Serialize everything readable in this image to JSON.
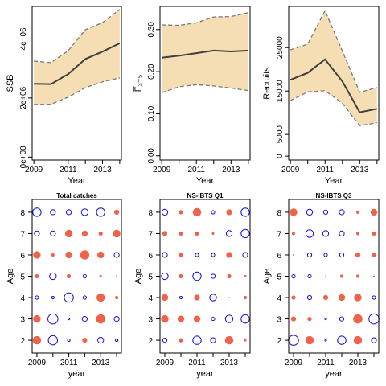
{
  "chart_data": [
    {
      "type": "area",
      "xlabel": "Year",
      "ylabel": "SSB",
      "x": [
        2009,
        2010,
        2011,
        2012,
        2013,
        2014
      ],
      "xticks": [
        "2009",
        "2011",
        "2013"
      ],
      "xlim": [
        2008.9,
        2014.1
      ],
      "ylim": [
        -100000,
        5100000
      ],
      "yticks": [
        0,
        2000000,
        4000000
      ],
      "ytick_labels": [
        "0e+00",
        "2e+06",
        "4e+06"
      ],
      "series": [
        {
          "role": "estimate",
          "values": [
            2480000,
            2470000,
            2810000,
            3320000,
            3570000,
            3850000
          ]
        },
        {
          "role": "upper",
          "values": [
            3250000,
            3200000,
            3600000,
            4310000,
            4550000,
            5000000
          ]
        },
        {
          "role": "lower",
          "values": [
            1780000,
            1790000,
            2030000,
            2350000,
            2550000,
            2680000
          ]
        }
      ],
      "colors": {
        "band": "#f5deb3",
        "line": "#404040",
        "ci": "#7a7a7a"
      }
    },
    {
      "type": "area",
      "xlabel": "Year",
      "ylabel": "F̅₃₋₅",
      "x": [
        2009,
        2010,
        2011,
        2012,
        2013,
        2014
      ],
      "xticks": [
        "2009",
        "2011",
        "2013"
      ],
      "xlim": [
        2008.9,
        2014.1
      ],
      "ylim": [
        -0.01,
        0.355
      ],
      "yticks": [
        0.0,
        0.1,
        0.2,
        0.3
      ],
      "ytick_labels": [
        "0.00",
        "0.10",
        "0.20",
        "0.30"
      ],
      "series": [
        {
          "role": "estimate",
          "values": [
            0.233,
            0.238,
            0.244,
            0.25,
            0.248,
            0.25
          ]
        },
        {
          "role": "upper",
          "values": [
            0.311,
            0.31,
            0.316,
            0.33,
            0.331,
            0.34
          ]
        },
        {
          "role": "lower",
          "values": [
            0.15,
            0.164,
            0.169,
            0.166,
            0.161,
            0.155
          ]
        }
      ],
      "colors": {
        "band": "#f5deb3",
        "line": "#404040",
        "ci": "#7a7a7a"
      }
    },
    {
      "type": "area",
      "xlabel": "Year",
      "ylabel": "Recruits",
      "x": [
        2009,
        2010,
        2011,
        2012,
        2013,
        2014
      ],
      "xticks": [
        "2009",
        "2011",
        "2013"
      ],
      "xlim": [
        2008.9,
        2014.1
      ],
      "ylim": [
        -900,
        34500
      ],
      "yticks": [
        0,
        5000,
        15000,
        25000
      ],
      "ytick_labels": [
        "0",
        "5000",
        "15000",
        "25000"
      ],
      "series": [
        {
          "role": "estimate",
          "values": [
            17600,
            19200,
            22300,
            17200,
            10100,
            10900
          ]
        },
        {
          "role": "upper",
          "values": [
            24500,
            25800,
            33500,
            24200,
            14700,
            15800
          ]
        },
        {
          "role": "lower",
          "values": [
            12800,
            14800,
            15100,
            12200,
            7000,
            7700
          ]
        }
      ],
      "colors": {
        "band": "#f5deb3",
        "line": "#404040",
        "ci": "#7a7a7a"
      }
    },
    {
      "type": "scatter",
      "title": "Total catches",
      "xlabel": "year",
      "ylabel": "Age",
      "years": [
        2009,
        2010,
        2011,
        2012,
        2013,
        2014
      ],
      "ages": [
        2,
        3,
        4,
        5,
        6,
        7,
        8
      ],
      "xticks": [
        "2009",
        "2011",
        "2013"
      ],
      "xlim": [
        2008.7,
        2014.3
      ],
      "ylim": [
        1.4,
        8.6
      ],
      "note": "residual bubbles; sign +1 = positive (filled red), -1 = negative (open blue); size = relative magnitude",
      "signs": [
        [
          1,
          -1,
          -1,
          1,
          -1,
          -1
        ],
        [
          1,
          -1,
          -1,
          -1,
          1,
          -1
        ],
        [
          -1,
          -1,
          -1,
          -1,
          1,
          1
        ],
        [
          1,
          -1,
          1,
          -1,
          1,
          1
        ],
        [
          1,
          1,
          1,
          1,
          1,
          -1
        ],
        [
          -1,
          -1,
          1,
          1,
          1,
          1
        ],
        [
          -1,
          -1,
          -1,
          -1,
          -1,
          1
        ]
      ],
      "magnitudes": [
        [
          1.0,
          1.1,
          0.3,
          0.6,
          0.7,
          0.3
        ],
        [
          0.9,
          1.2,
          0.2,
          0.6,
          1.1,
          0.6
        ],
        [
          0.4,
          0.3,
          1.1,
          0.4,
          1.0,
          0.4
        ],
        [
          0.5,
          0.8,
          0.5,
          0.4,
          0.3,
          0.2
        ],
        [
          0.9,
          0.4,
          0.8,
          1.1,
          0.8,
          0.6
        ],
        [
          0.6,
          0.6,
          0.9,
          0.7,
          0.5,
          0.9
        ],
        [
          1.0,
          0.6,
          0.6,
          0.8,
          1.0,
          0.6
        ]
      ],
      "colors": {
        "positive": "#f0624a",
        "negative": "#1010e0"
      }
    },
    {
      "type": "scatter",
      "title": "NS-IBTS Q1",
      "xlabel": "year",
      "ylabel": "Age",
      "years": [
        2009,
        2010,
        2011,
        2012,
        2013,
        2014
      ],
      "ages": [
        2,
        3,
        4,
        5,
        6,
        7,
        8
      ],
      "xticks": [
        "2009",
        "2011",
        "2013"
      ],
      "xlim": [
        2008.7,
        2014.3
      ],
      "ylim": [
        1.4,
        8.6
      ],
      "signs": [
        [
          -1,
          1,
          -1,
          -1,
          1,
          1
        ],
        [
          1,
          1,
          1,
          -1,
          -1,
          -1
        ],
        [
          1,
          -1,
          1,
          -1,
          1,
          1
        ],
        [
          -1,
          1,
          -1,
          -1,
          1,
          1
        ],
        [
          -1,
          1,
          -1,
          -1,
          1,
          -1
        ],
        [
          1,
          1,
          1,
          1,
          -1,
          -1
        ],
        [
          -1,
          1,
          1,
          -1,
          1,
          -1
        ]
      ],
      "magnitudes": [
        [
          0.5,
          0.5,
          1.0,
          0.6,
          1.0,
          0.3
        ],
        [
          0.9,
          0.8,
          0.8,
          0.4,
          0.9,
          1.0
        ],
        [
          0.8,
          0.3,
          0.7,
          0.8,
          0.1,
          0.4
        ],
        [
          0.8,
          0.5,
          1.0,
          0.5,
          0.5,
          0.3
        ],
        [
          0.6,
          0.5,
          0.4,
          0.4,
          0.7,
          0.6
        ],
        [
          0.6,
          0.5,
          0.5,
          0.3,
          0.7,
          1.0
        ],
        [
          0.7,
          0.5,
          1.0,
          0.4,
          0.7,
          1.0
        ]
      ],
      "colors": {
        "positive": "#f0624a",
        "negative": "#1010e0"
      }
    },
    {
      "type": "scatter",
      "title": "NS-IBTS Q3",
      "xlabel": "year",
      "ylabel": "Age",
      "years": [
        2009,
        2010,
        2011,
        2012,
        2013,
        2014
      ],
      "ages": [
        2,
        3,
        4,
        5,
        6,
        7,
        8
      ],
      "xticks": [
        "2009",
        "2011",
        "2013"
      ],
      "xlim": [
        2008.7,
        2014.3
      ],
      "ylim": [
        1.4,
        8.6
      ],
      "signs": [
        [
          -1,
          1,
          -1,
          -1,
          1,
          -1
        ],
        [
          1,
          1,
          -1,
          -1,
          1,
          -1
        ],
        [
          1,
          -1,
          1,
          1,
          1,
          -1
        ],
        [
          -1,
          -1,
          1,
          1,
          1,
          1
        ],
        [
          1,
          -1,
          -1,
          -1,
          1,
          1
        ],
        [
          1,
          -1,
          -1,
          -1,
          1,
          1
        ],
        [
          1,
          -1,
          -1,
          -1,
          1,
          1
        ]
      ],
      "magnitudes": [
        [
          1.2,
          1.0,
          0.2,
          1.0,
          1.0,
          0.6
        ],
        [
          0.6,
          0.5,
          0.2,
          0.5,
          1.1,
          1.2
        ],
        [
          0.5,
          0.5,
          0.6,
          0.8,
          0.9,
          0.4
        ],
        [
          0.4,
          0.4,
          0.1,
          0.4,
          0.4,
          0.2
        ],
        [
          0.2,
          0.5,
          0.4,
          0.5,
          0.6,
          0.5
        ],
        [
          0.4,
          0.9,
          0.7,
          0.6,
          0.4,
          0.5
        ],
        [
          0.9,
          0.7,
          0.5,
          0.6,
          0.4,
          0.8
        ]
      ],
      "colors": {
        "positive": "#f0624a",
        "negative": "#1010e0"
      }
    }
  ]
}
